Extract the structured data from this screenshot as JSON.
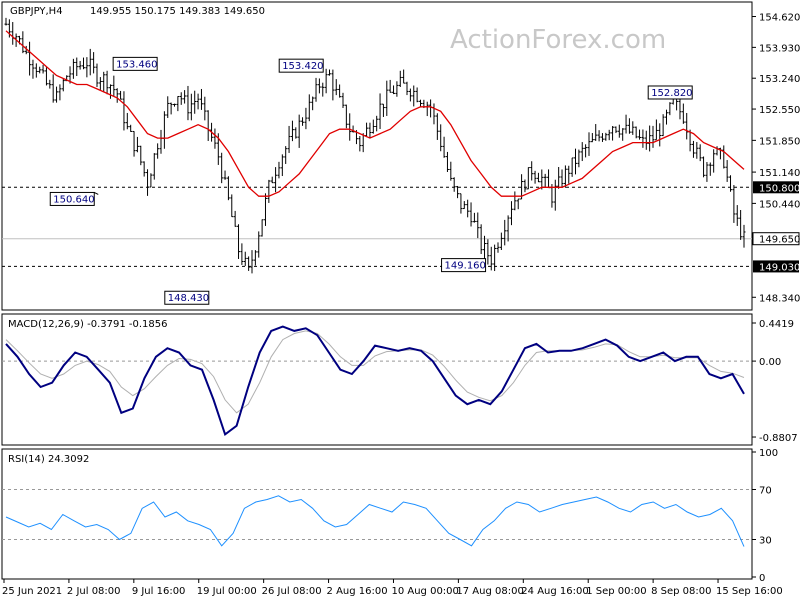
{
  "chart_data": {
    "type": "candlestick",
    "symbol_header": "GBPJPY,H4",
    "ohlc_header": "149.955 150.175 149.383 149.650",
    "watermark": "ActionForex.com",
    "x_tick_labels": [
      "25 Jun 2021",
      "2 Jul 08:00",
      "9 Jul 16:00",
      "19 Jul 00:00",
      "26 Jul 08:00",
      "2 Aug 16:00",
      "10 Aug 00:00",
      "17 Aug 08:00",
      "24 Aug 16:00",
      "1 Sep 00:00",
      "8 Sep 08:00",
      "15 Sep 16:00"
    ],
    "price_panel": {
      "ylim": [
        148.1,
        154.9
      ],
      "y_ticks": [
        "154.620",
        "153.930",
        "153.240",
        "152.550",
        "151.850",
        "151.140",
        "150.440",
        "148.340"
      ],
      "current_price": "149.650",
      "current_price_value": 149.65,
      "support_levels": [
        {
          "label": "150.800",
          "value": 150.8
        },
        {
          "label": "149.030",
          "value": 149.03
        }
      ],
      "annotations": [
        {
          "label": "153.460",
          "value": 153.46
        },
        {
          "label": "150.640",
          "value": 150.64
        },
        {
          "label": "148.430",
          "value": 148.43
        },
        {
          "label": "153.420",
          "value": 153.42
        },
        {
          "label": "149.160",
          "value": 149.16
        },
        {
          "label": "152.820",
          "value": 152.82
        }
      ],
      "close_path": [
        154.45,
        154.2,
        153.8,
        153.5,
        153.1,
        152.8,
        153.3,
        153.5,
        153.6,
        153.3,
        153.2,
        152.9,
        152.1,
        151.6,
        150.9,
        151.8,
        152.6,
        152.9,
        152.6,
        152.8,
        152.1,
        151.5,
        150.5,
        149.4,
        148.9,
        149.8,
        150.8,
        151.4,
        151.8,
        152.2,
        152.6,
        153.1,
        153.3,
        152.7,
        152.1,
        151.8,
        152.2,
        152.6,
        152.9,
        153.1,
        153.0,
        152.8,
        152.6,
        151.8,
        150.9,
        150.4,
        150.2,
        149.5,
        149.2,
        149.8,
        150.4,
        150.8,
        151.2,
        151.0,
        150.6,
        151.0,
        151.3,
        151.6,
        151.8,
        152.0,
        152.2,
        152.1,
        152.0,
        151.8,
        151.9,
        152.2,
        152.7,
        152.4,
        151.7,
        151.2,
        151.6,
        151.4,
        150.2,
        149.65
      ],
      "sma_path": [
        154.3,
        154.1,
        153.9,
        153.7,
        153.5,
        153.3,
        153.2,
        153.1,
        153.1,
        153.0,
        152.9,
        152.8,
        152.6,
        152.3,
        152.0,
        151.9,
        151.9,
        152.0,
        152.1,
        152.2,
        152.1,
        151.9,
        151.6,
        151.2,
        150.8,
        150.6,
        150.6,
        150.7,
        150.9,
        151.1,
        151.4,
        151.7,
        152.0,
        152.1,
        152.1,
        152.0,
        151.9,
        152.0,
        152.1,
        152.3,
        152.5,
        152.6,
        152.6,
        152.5,
        152.2,
        151.8,
        151.4,
        151.1,
        150.8,
        150.6,
        150.6,
        150.6,
        150.7,
        150.8,
        150.8,
        150.8,
        150.9,
        151.0,
        151.2,
        151.4,
        151.6,
        151.7,
        151.8,
        151.8,
        151.8,
        151.9,
        152.0,
        152.1,
        152.0,
        151.8,
        151.7,
        151.6,
        151.4,
        151.2
      ]
    },
    "macd_panel": {
      "label": "MACD(12,26,9) -0.3791 -0.1856",
      "ylim": [
        -0.95,
        0.5
      ],
      "y_ticks": [
        "0.4419",
        "0.00",
        "-0.8807"
      ],
      "macd_value": -0.3791,
      "signal_value": -0.1856,
      "macd_path": [
        0.2,
        0.05,
        -0.15,
        -0.3,
        -0.25,
        -0.05,
        0.1,
        0.05,
        -0.1,
        -0.25,
        -0.6,
        -0.55,
        -0.2,
        0.05,
        0.15,
        0.1,
        -0.05,
        -0.1,
        -0.45,
        -0.85,
        -0.75,
        -0.3,
        0.1,
        0.35,
        0.4,
        0.35,
        0.38,
        0.3,
        0.1,
        -0.1,
        -0.15,
        0.0,
        0.18,
        0.15,
        0.12,
        0.15,
        0.12,
        0.0,
        -0.2,
        -0.4,
        -0.5,
        -0.45,
        -0.5,
        -0.35,
        -0.1,
        0.15,
        0.2,
        0.1,
        0.12,
        0.12,
        0.15,
        0.2,
        0.25,
        0.18,
        0.05,
        0.0,
        0.05,
        0.1,
        0.0,
        0.05,
        0.05,
        -0.15,
        -0.2,
        -0.15,
        -0.38
      ],
      "signal_path": [
        0.25,
        0.12,
        -0.02,
        -0.15,
        -0.2,
        -0.15,
        -0.05,
        0.0,
        -0.04,
        -0.12,
        -0.3,
        -0.4,
        -0.32,
        -0.18,
        -0.05,
        0.03,
        0.02,
        -0.03,
        -0.18,
        -0.45,
        -0.6,
        -0.5,
        -0.25,
        0.05,
        0.25,
        0.32,
        0.35,
        0.32,
        0.2,
        0.05,
        -0.05,
        -0.05,
        0.06,
        0.11,
        0.12,
        0.13,
        0.13,
        0.07,
        -0.06,
        -0.22,
        -0.36,
        -0.42,
        -0.46,
        -0.4,
        -0.25,
        -0.05,
        0.1,
        0.12,
        0.12,
        0.12,
        0.13,
        0.16,
        0.2,
        0.19,
        0.11,
        0.05,
        0.05,
        0.07,
        0.04,
        0.04,
        0.04,
        -0.05,
        -0.12,
        -0.14,
        -0.19
      ]
    },
    "rsi_panel": {
      "label": "RSI(14) 24.3092",
      "ylim": [
        0,
        100
      ],
      "y_ticks": [
        "100",
        "70",
        "30",
        "0"
      ],
      "levels": [
        70,
        30
      ],
      "rsi_value": 24.3092,
      "rsi_path": [
        48,
        44,
        40,
        43,
        38,
        50,
        45,
        40,
        42,
        38,
        30,
        35,
        55,
        60,
        48,
        52,
        45,
        42,
        38,
        25,
        35,
        55,
        60,
        62,
        65,
        60,
        62,
        55,
        45,
        40,
        42,
        50,
        58,
        55,
        52,
        60,
        58,
        55,
        45,
        35,
        30,
        25,
        38,
        45,
        55,
        60,
        58,
        52,
        55,
        58,
        60,
        62,
        64,
        60,
        55,
        52,
        58,
        60,
        55,
        58,
        52,
        48,
        50,
        55,
        45,
        24.3
      ]
    }
  }
}
